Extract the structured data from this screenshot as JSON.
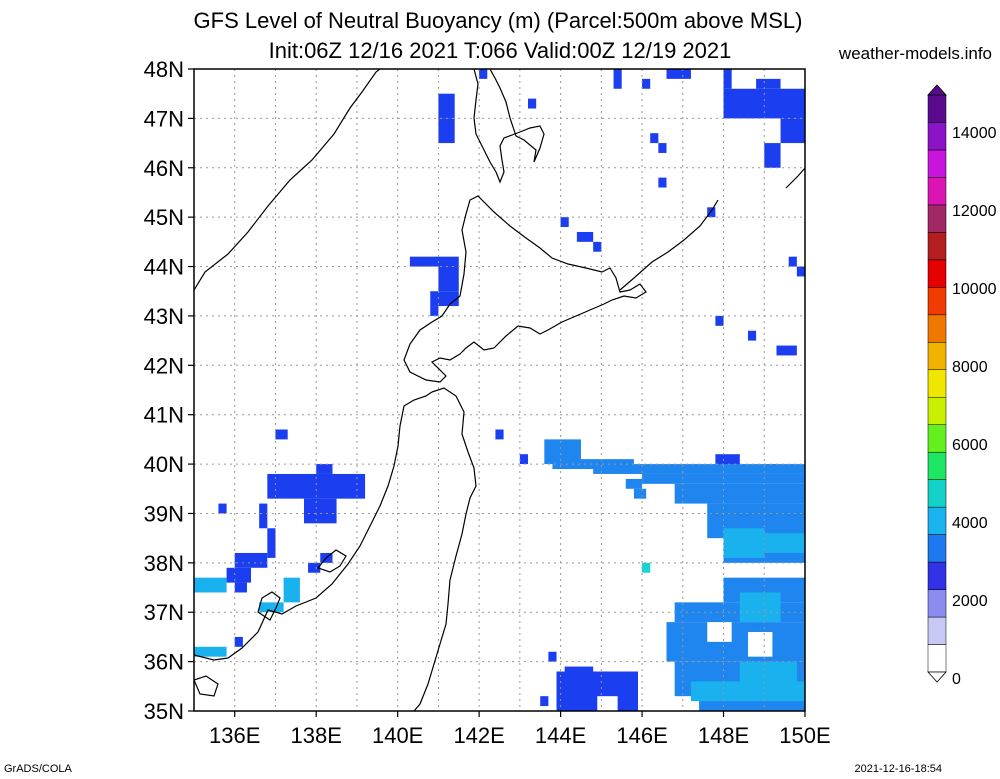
{
  "header": {
    "title_line1": "GFS Level of Neutral Buoyancy (m) (Parcel:500m above MSL)",
    "title_line2": "Init:06Z 12/16 2021 T:066 Valid:00Z 12/19 2021",
    "site": "weather-models.info"
  },
  "footer": {
    "left": "GrADS/COLA",
    "right": "2021-12-16-18:54"
  },
  "map": {
    "lat_labels": [
      "48N",
      "47N",
      "46N",
      "45N",
      "44N",
      "43N",
      "42N",
      "41N",
      "40N",
      "39N",
      "38N",
      "37N",
      "36N",
      "35N"
    ],
    "lon_labels": [
      "136E",
      "138E",
      "140E",
      "142E",
      "144E",
      "146E",
      "148E",
      "150E"
    ],
    "lon_range": [
      135,
      150
    ],
    "lat_range": [
      35,
      48
    ],
    "colors": {
      "deep_blue": "#1a3ef0",
      "mid_blue": "#1f86f0",
      "light_blue": "#19b2ef",
      "cyan": "#14d5d5"
    }
  },
  "colorbar": {
    "labels": [
      "0",
      "2000",
      "4000",
      "6000",
      "8000",
      "10000",
      "12000",
      "14000"
    ],
    "stops": [
      "#ffffff",
      "#c8c8f5",
      "#8c8cf0",
      "#3232e6",
      "#1e78f0",
      "#19b4f0",
      "#14d2c8",
      "#1ee664",
      "#64f01e",
      "#c8f000",
      "#f0e600",
      "#f0b400",
      "#f07800",
      "#f03c00",
      "#e60000",
      "#b41e1e",
      "#a02864",
      "#dc14b4",
      "#c814dc",
      "#8c14c8",
      "#5a0a8c"
    ]
  }
}
